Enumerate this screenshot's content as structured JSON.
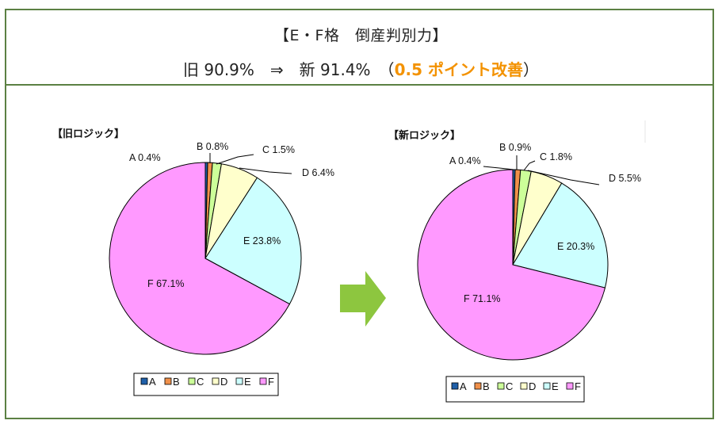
{
  "header": {
    "title": "【E・F格　倒産判別力】",
    "summary_prefix": "旧 90.9%　⇒　新 91.4%　（",
    "summary_highlight": "0.5 ポイント改善",
    "summary_suffix": "）",
    "highlight_color": "#f39200"
  },
  "colors": {
    "frame": "#5b8043",
    "arrow": "#8dc63f",
    "A": "#1f5fa8",
    "B": "#f0904a",
    "C": "#ccff99",
    "D": "#ffffcc",
    "E": "#ccffff",
    "F": "#ff99ff"
  },
  "chart_data": [
    {
      "type": "pie",
      "title": "【旧ロジック】",
      "categories": [
        "A",
        "B",
        "C",
        "D",
        "E",
        "F"
      ],
      "values": [
        0.4,
        0.8,
        1.5,
        6.4,
        23.8,
        67.1
      ],
      "labels": [
        "A 0.4%",
        "B 0.8%",
        "C 1.5%",
        "D 6.4%",
        "E 23.8%",
        "F 67.1%"
      ],
      "legend": [
        "A",
        "B",
        "C",
        "D",
        "E",
        "F"
      ],
      "legend_position": "bottom",
      "start_angle": "12 o'clock, clockwise"
    },
    {
      "type": "pie",
      "title": "【新ロジック】",
      "categories": [
        "A",
        "B",
        "C",
        "D",
        "E",
        "F"
      ],
      "values": [
        0.4,
        0.9,
        1.8,
        5.5,
        20.3,
        71.1
      ],
      "labels": [
        "A 0.4%",
        "B 0.9%",
        "C 1.8%",
        "D 5.5%",
        "E 20.3%",
        "F 71.1%"
      ],
      "legend": [
        "A",
        "B",
        "C",
        "D",
        "E",
        "F"
      ],
      "legend_position": "bottom",
      "start_angle": "12 o'clock, clockwise"
    }
  ],
  "arrow": {
    "icon": "right-arrow-icon",
    "direction": "old-to-new"
  }
}
